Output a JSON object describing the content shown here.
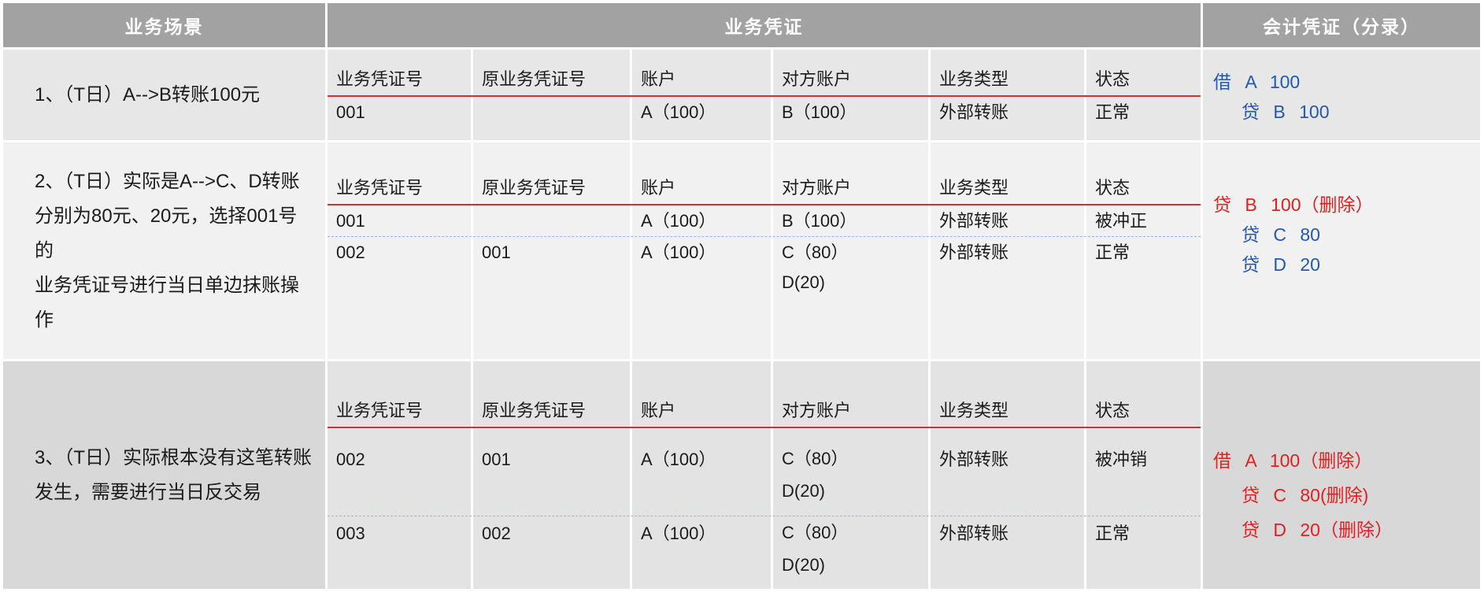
{
  "colors": {
    "header_bg": "#a2a2a2",
    "row1_bg": "#e7e7e7",
    "row2_bg": "#f1f1f1",
    "row3_bg": "#d8d8d8",
    "row3_cell_bg": "#e3e3e3",
    "header_underline_red": "#c93434",
    "dashed_divider_blue": "#93b7dd",
    "entry_blue": "#2458ac",
    "entry_red": "#e41e1e"
  },
  "header": {
    "scenario": "业务场景",
    "voucher": "业务凭证",
    "accounting": "会计凭证（分录）"
  },
  "voucher_headers": [
    "业务凭证号",
    "原业务凭证号",
    "账户",
    "对方账户",
    "业务类型",
    "状态"
  ],
  "rows": [
    {
      "scenario": "1、（T日）A-->B转账100元",
      "vouchers": [
        {
          "num": "001",
          "orig": "",
          "acct": "A（100）",
          "cp1": "B（100）",
          "cp2": "",
          "type": "外部转账",
          "status": "正常"
        }
      ],
      "entries": [
        {
          "text": "借 A 100",
          "tone": "blue"
        },
        {
          "text": "贷 B 100",
          "tone": "blue"
        }
      ]
    },
    {
      "scenario": "2、（T日）实际是A-->C、D转账\n分别为80元、20元，选择001号的\n业务凭证号进行当日单边抹账操作",
      "vouchers": [
        {
          "num": "001",
          "orig": "",
          "acct": "A（100）",
          "cp1": "B（100）",
          "cp2": "",
          "type": "外部转账",
          "status": "被冲正"
        },
        {
          "num": "002",
          "orig": "001",
          "acct": "A（100）",
          "cp1": "C（80）",
          "cp2": "D(20)",
          "type": "外部转账",
          "status": "正常"
        }
      ],
      "entries": [
        {
          "text": "贷 B 100（删除）",
          "tone": "red"
        },
        {
          "text": "贷 C 80",
          "tone": "blue"
        },
        {
          "text": "贷 D 20",
          "tone": "blue"
        }
      ]
    },
    {
      "scenario": "3、（T日）实际根本没有这笔转账\n发生，需要进行当日反交易",
      "vouchers": [
        {
          "num": "002",
          "orig": "001",
          "acct": "A（100）",
          "cp1": "C（80）",
          "cp2": "D(20)",
          "type": "外部转账",
          "status": "被冲销"
        },
        {
          "num": "003",
          "orig": "002",
          "acct": "A（100）",
          "cp1": "C（80）",
          "cp2": "D(20)",
          "type": "外部转账",
          "status": "正常"
        }
      ],
      "entries": [
        {
          "text": "借 A 100（删除）",
          "tone": "red"
        },
        {
          "text": "贷 C 80(删除)",
          "tone": "red"
        },
        {
          "text": "贷 D 20（删除）",
          "tone": "red"
        }
      ]
    }
  ]
}
